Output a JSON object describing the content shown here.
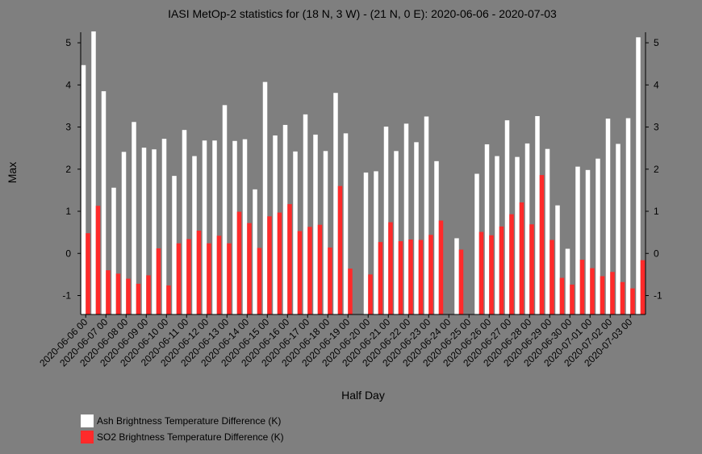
{
  "chart_data": {
    "type": "bar",
    "title": "IASI MetOp-2 statistics for (18 N, 3 W) - (21 N, 0 E): 2020-06-06 - 2020-07-03",
    "xlabel": "Half Day",
    "ylabel": "Max",
    "ylim": [
      -1.45,
      5.25
    ],
    "yticks": [
      -1,
      0,
      1,
      2,
      3,
      4,
      5
    ],
    "xtick_labels": [
      "2020-06-06 00",
      "2020-06-07 00",
      "2020-06-08 00",
      "2020-06-09 00",
      "2020-06-10 00",
      "2020-06-11 00",
      "2020-06-12 00",
      "2020-06-13 00",
      "2020-06-14 00",
      "2020-06-15 00",
      "2020-06-16 00",
      "2020-06-17 00",
      "2020-06-18 00",
      "2020-06-19 00",
      "2020-06-20 00",
      "2020-06-21 00",
      "2020-06-22 00",
      "2020-06-23 00",
      "2020-06-24 00",
      "2020-06-25 00",
      "2020-06-26 00",
      "2020-06-27 00",
      "2020-06-28 00",
      "2020-06-29 00",
      "2020-06-30 00",
      "2020-07-01 00",
      "2020-07-02 00",
      "2020-07-03 00"
    ],
    "grid": false,
    "legend_position": "bottom-left",
    "series": [
      {
        "name": "Ash Brightness Temperature Difference (K)",
        "color": "#ffffff",
        "values": [
          4.47,
          5.27,
          3.85,
          1.56,
          2.41,
          3.12,
          2.51,
          2.47,
          2.72,
          1.84,
          2.93,
          2.31,
          2.68,
          2.68,
          3.52,
          2.67,
          2.71,
          1.52,
          4.07,
          2.8,
          3.05,
          2.42,
          3.3,
          2.82,
          2.43,
          3.81,
          2.85,
          null,
          1.92,
          1.95,
          3.01,
          2.43,
          3.08,
          2.64,
          3.25,
          2.19,
          null,
          0.36,
          null,
          1.89,
          2.59,
          2.31,
          3.16,
          2.29,
          2.61,
          3.26,
          2.48,
          1.14,
          0.11,
          2.06,
          1.98,
          2.25,
          3.2,
          2.6,
          3.21,
          5.13
        ]
      },
      {
        "name": "SO2 Brightness Temperature Difference (K)",
        "color": "#ff2a2a",
        "values": [
          0.48,
          1.13,
          -0.4,
          -0.48,
          -0.6,
          -0.72,
          -0.52,
          0.12,
          -0.76,
          0.24,
          0.34,
          0.54,
          0.24,
          0.42,
          0.24,
          0.99,
          0.72,
          0.13,
          0.88,
          0.97,
          1.17,
          0.53,
          0.63,
          0.68,
          0.14,
          1.6,
          -0.36,
          null,
          -0.5,
          0.27,
          0.74,
          0.29,
          0.33,
          0.32,
          0.44,
          0.78,
          null,
          0.09,
          null,
          0.51,
          0.43,
          0.64,
          0.93,
          1.21,
          0.69,
          1.86,
          0.32,
          -0.58,
          -0.74,
          -0.15,
          -0.35,
          -0.54,
          -0.44,
          -0.68,
          -0.83,
          -0.16
        ]
      }
    ]
  }
}
